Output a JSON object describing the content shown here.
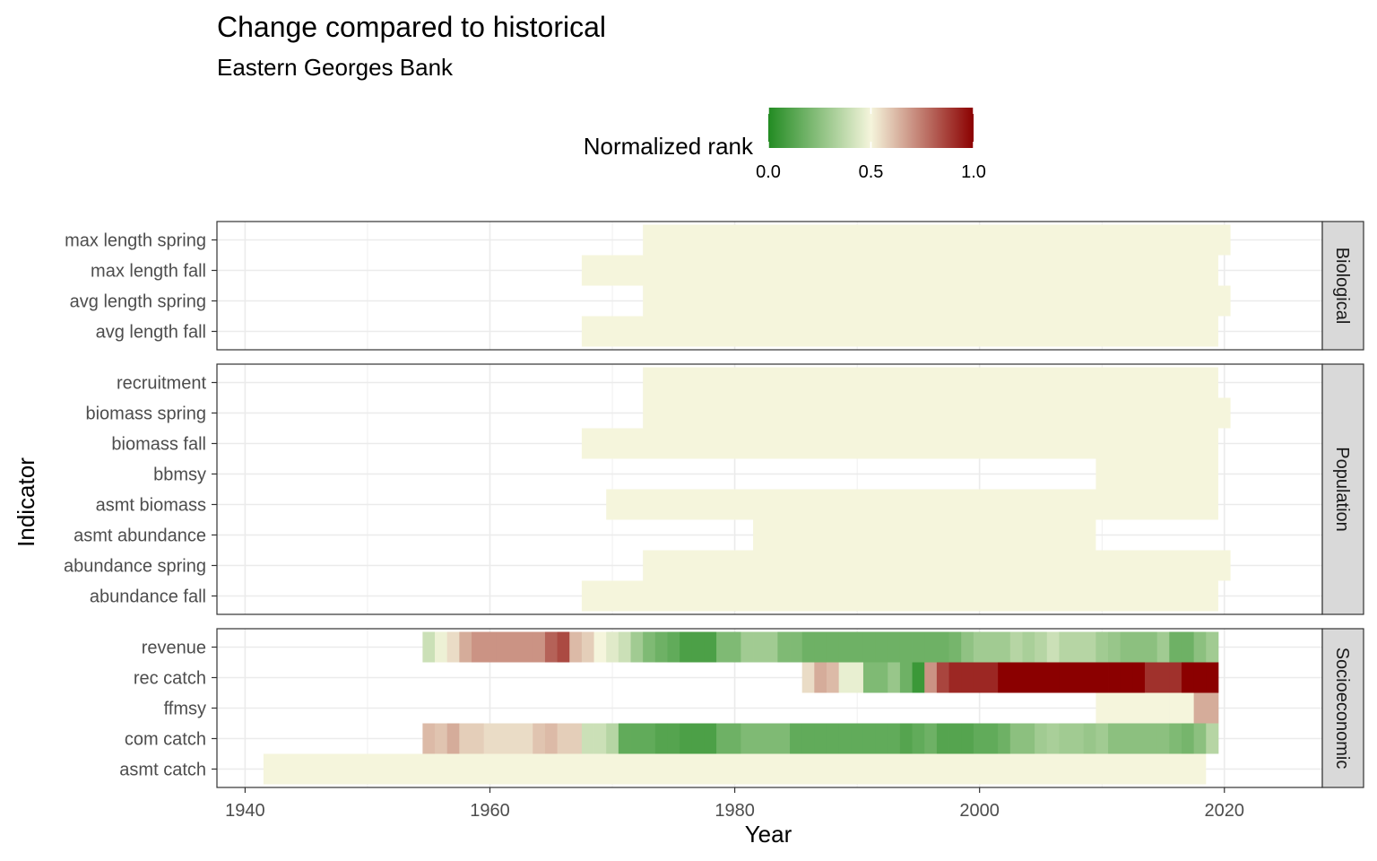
{
  "chart_data": {
    "type": "heatmap",
    "title": "Change compared to historical",
    "subtitle": "Eastern Georges Bank",
    "xlabel": "Year",
    "ylabel": "Indicator",
    "xlim": [
      1937.7,
      2028
    ],
    "x_ticks": [
      1940,
      1960,
      1980,
      2000,
      2020
    ],
    "grid": true,
    "legend": {
      "title": "Normalized rank",
      "position": "top",
      "ticks": [
        0.0,
        0.5,
        1.0
      ],
      "tick_labels": [
        "0.0",
        "0.5",
        "1.0"
      ],
      "colors": [
        "#228b22",
        "#f5f5dc",
        "#8b0000"
      ]
    },
    "facets": [
      {
        "name": "Biological",
        "indicators": [
          {
            "name": "max length spring",
            "segments": [
              {
                "start": 1973,
                "end": 2020,
                "value": 0.5
              }
            ]
          },
          {
            "name": "max length fall",
            "segments": [
              {
                "start": 1968,
                "end": 2019,
                "value": 0.5
              }
            ]
          },
          {
            "name": "avg length spring",
            "segments": [
              {
                "start": 1973,
                "end": 2020,
                "value": 0.5
              }
            ]
          },
          {
            "name": "avg length fall",
            "segments": [
              {
                "start": 1968,
                "end": 2019,
                "value": 0.5
              }
            ]
          }
        ]
      },
      {
        "name": "Population",
        "indicators": [
          {
            "name": "recruitment",
            "segments": [
              {
                "start": 1973,
                "end": 2019,
                "value": 0.5
              }
            ]
          },
          {
            "name": "biomass spring",
            "segments": [
              {
                "start": 1973,
                "end": 2020,
                "value": 0.5
              }
            ]
          },
          {
            "name": "biomass fall",
            "segments": [
              {
                "start": 1968,
                "end": 2019,
                "value": 0.5
              }
            ]
          },
          {
            "name": "bbmsy",
            "segments": [
              {
                "start": 2010,
                "end": 2019,
                "value": 0.5
              }
            ]
          },
          {
            "name": "asmt biomass",
            "segments": [
              {
                "start": 1970,
                "end": 2019,
                "value": 0.5
              }
            ]
          },
          {
            "name": "asmt abundance",
            "segments": [
              {
                "start": 1982,
                "end": 2009,
                "value": 0.5
              }
            ]
          },
          {
            "name": "abundance spring",
            "segments": [
              {
                "start": 1973,
                "end": 2020,
                "value": 0.5
              }
            ]
          },
          {
            "name": "abundance fall",
            "segments": [
              {
                "start": 1968,
                "end": 2019,
                "value": 0.5
              }
            ]
          }
        ]
      },
      {
        "name": "Socioeconomic",
        "indicators": [
          {
            "name": "revenue",
            "start_year": 1955,
            "values": [
              0.4,
              0.48,
              0.55,
              0.65,
              0.7,
              0.7,
              0.7,
              0.7,
              0.7,
              0.7,
              0.8,
              0.85,
              0.62,
              0.58,
              0.5,
              0.45,
              0.4,
              0.3,
              0.22,
              0.18,
              0.15,
              0.1,
              0.1,
              0.1,
              0.22,
              0.22,
              0.3,
              0.3,
              0.3,
              0.22,
              0.22,
              0.18,
              0.18,
              0.18,
              0.18,
              0.18,
              0.18,
              0.18,
              0.18,
              0.18,
              0.18,
              0.18,
              0.18,
              0.2,
              0.26,
              0.3,
              0.3,
              0.3,
              0.35,
              0.32,
              0.35,
              0.4,
              0.35,
              0.35,
              0.35,
              0.3,
              0.28,
              0.25,
              0.25,
              0.25,
              0.3,
              0.18,
              0.18,
              0.25,
              0.3
            ]
          },
          {
            "name": "rec catch",
            "start_year": 1986,
            "values": [
              0.55,
              0.65,
              0.62,
              0.47,
              0.47,
              0.22,
              0.22,
              0.28,
              0.18,
              0.06,
              0.7,
              0.86,
              0.92,
              0.92,
              0.92,
              0.92,
              1.0,
              1.0,
              1.0,
              1.0,
              1.0,
              1.0,
              1.0,
              1.0,
              1.0,
              1.0,
              1.0,
              1.0,
              0.9,
              0.9,
              0.9,
              1.0,
              1.0,
              1.0
            ]
          },
          {
            "name": "ffmsy",
            "start_year": 2010,
            "values": [
              0.5,
              0.5,
              0.5,
              0.5,
              0.5,
              0.5,
              0.5,
              0.5,
              0.65,
              0.65
            ]
          },
          {
            "name": "com catch",
            "start_year": 1955,
            "values": [
              0.62,
              0.6,
              0.65,
              0.58,
              0.58,
              0.55,
              0.55,
              0.55,
              0.55,
              0.6,
              0.62,
              0.58,
              0.58,
              0.4,
              0.4,
              0.35,
              0.15,
              0.15,
              0.15,
              0.12,
              0.12,
              0.1,
              0.1,
              0.1,
              0.18,
              0.18,
              0.22,
              0.22,
              0.22,
              0.22,
              0.15,
              0.15,
              0.15,
              0.15,
              0.15,
              0.15,
              0.15,
              0.15,
              0.15,
              0.12,
              0.15,
              0.18,
              0.12,
              0.12,
              0.12,
              0.15,
              0.15,
              0.18,
              0.25,
              0.25,
              0.3,
              0.32,
              0.3,
              0.3,
              0.28,
              0.3,
              0.25,
              0.25,
              0.25,
              0.25,
              0.25,
              0.22,
              0.2,
              0.25,
              0.35
            ]
          },
          {
            "name": "asmt catch",
            "segments": [
              {
                "start": 1942,
                "end": 2018,
                "value": 0.5
              }
            ]
          }
        ]
      }
    ]
  }
}
